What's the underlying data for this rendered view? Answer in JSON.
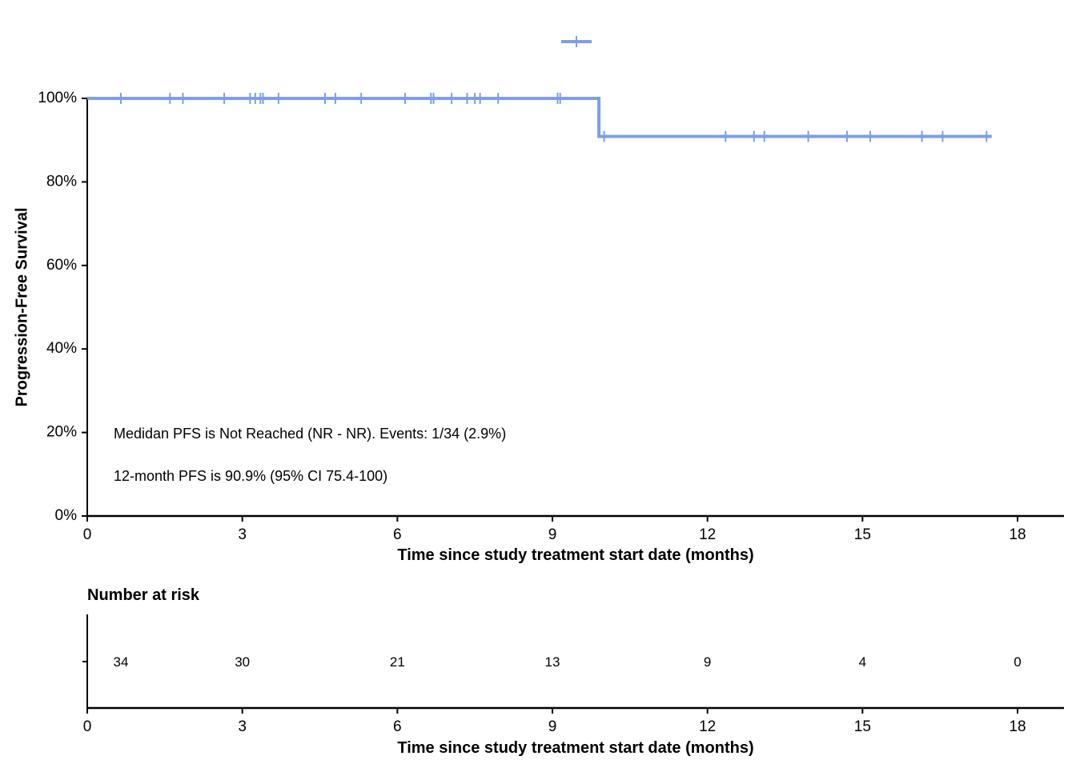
{
  "chart_data": {
    "type": "line",
    "subtype": "kaplan-meier",
    "colors": {
      "series": "#7B9FE8",
      "axis": "#000000"
    },
    "ylabel": "Progression-Free Survival",
    "xlabel": "Time since study treatment start date (months)",
    "xlim": [
      0,
      18
    ],
    "ylim": [
      0,
      100
    ],
    "x_ticks": [
      0,
      3,
      6,
      9,
      12,
      15,
      18
    ],
    "x_tick_labels": [
      "0",
      "3",
      "6",
      "9",
      "12",
      "15",
      "18"
    ],
    "y_ticks": [
      0,
      20,
      40,
      60,
      80,
      100
    ],
    "y_tick_labels": [
      "0%",
      "20%",
      "40%",
      "60%",
      "80%",
      "100%"
    ],
    "series": [
      {
        "steps": [
          {
            "x": 0,
            "y": 100
          },
          {
            "x": 9.9,
            "y": 90.9
          },
          {
            "x": 17.5,
            "y": 90.9
          }
        ],
        "censor_times": [
          0.65,
          1.6,
          1.85,
          2.65,
          3.15,
          3.25,
          3.35,
          3.4,
          3.7,
          4.6,
          4.8,
          5.3,
          6.15,
          6.65,
          6.7,
          7.05,
          7.35,
          7.5,
          7.6,
          7.95,
          9.1,
          9.15,
          10.0,
          12.35,
          12.9,
          13.1,
          13.95,
          14.7,
          15.15,
          16.15,
          16.55,
          17.4
        ]
      }
    ],
    "legend": {
      "placement": "top-center",
      "marker": "line-with-censor-tick"
    },
    "grid": false,
    "annotations": [
      "Medidan PFS is Not Reached (NR - NR). Events: 1/34 (2.9%)",
      "12-month PFS is 90.9% (95% CI 75.4-100)"
    ],
    "risk_table": {
      "title": "Number at risk",
      "times": [
        0.65,
        3,
        6,
        9,
        12,
        15,
        18
      ],
      "counts": [
        "34",
        "30",
        "21",
        "13",
        "9",
        "4",
        "0"
      ],
      "xlabel": "Time since study treatment start date (months)"
    }
  }
}
